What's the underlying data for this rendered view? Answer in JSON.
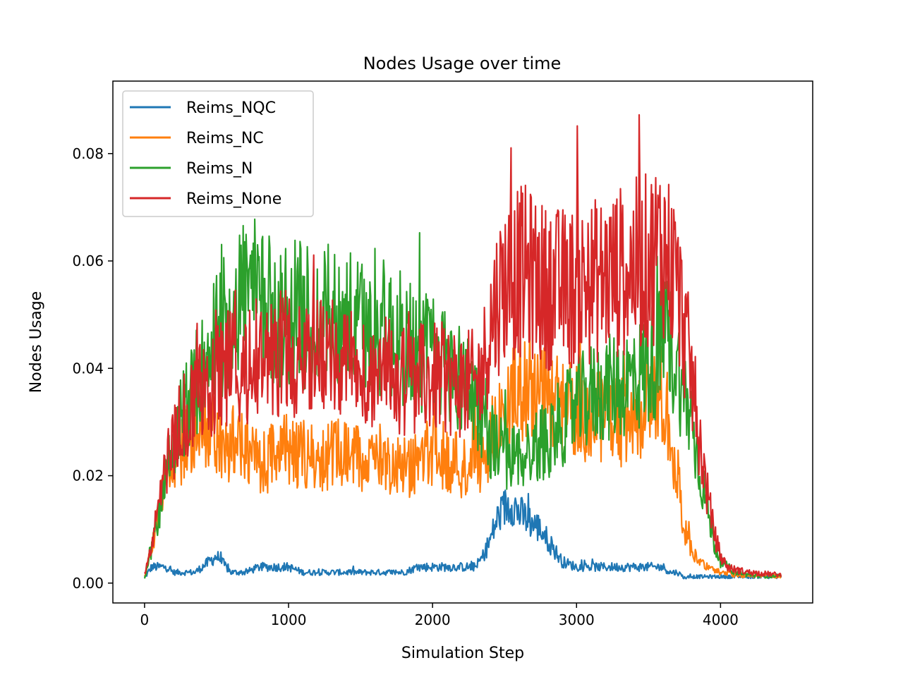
{
  "chart_data": {
    "type": "line",
    "title": "Nodes Usage over time",
    "xlabel": "Simulation Step",
    "ylabel": "Nodes Usage",
    "xlim": [
      -220,
      4640
    ],
    "ylim": [
      -0.0037,
      0.0935
    ],
    "xticks": [
      0,
      1000,
      2000,
      3000,
      4000
    ],
    "xtick_labels": [
      "0",
      "1000",
      "2000",
      "3000",
      "4000"
    ],
    "yticks": [
      0.0,
      0.02,
      0.04,
      0.06,
      0.08
    ],
    "ytick_labels": [
      "0.00",
      "0.02",
      "0.04",
      "0.06",
      "0.08"
    ],
    "grid": false,
    "legend_position": "top-left",
    "x": [
      0,
      50,
      100,
      150,
      200,
      250,
      300,
      350,
      400,
      500,
      600,
      700,
      800,
      900,
      1000,
      1100,
      1200,
      1300,
      1400,
      1500,
      1600,
      1700,
      1800,
      1900,
      2000,
      2100,
      2200,
      2300,
      2350,
      2400,
      2450,
      2500,
      2550,
      2600,
      2650,
      2700,
      2750,
      2800,
      2900,
      3000,
      3100,
      3200,
      3300,
      3400,
      3500,
      3550,
      3600,
      3650,
      3700,
      3750,
      3800,
      3850,
      3900,
      3950,
      4000,
      4050,
      4100,
      4200,
      4300,
      4420
    ],
    "series": [
      {
        "name": "Reims_NQC",
        "color": "#1f77b4",
        "values": [
          0.001,
          0.003,
          0.003,
          0.003,
          0.002,
          0.002,
          0.002,
          0.002,
          0.003,
          0.005,
          0.002,
          0.002,
          0.003,
          0.003,
          0.003,
          0.002,
          0.002,
          0.002,
          0.002,
          0.002,
          0.002,
          0.002,
          0.002,
          0.003,
          0.003,
          0.003,
          0.003,
          0.003,
          0.005,
          0.008,
          0.012,
          0.014,
          0.015,
          0.013,
          0.012,
          0.011,
          0.01,
          0.008,
          0.004,
          0.003,
          0.003,
          0.003,
          0.003,
          0.003,
          0.003,
          0.003,
          0.003,
          0.002,
          0.002,
          0.001,
          0.0012,
          0.0012,
          0.0012,
          0.0012,
          0.0012,
          0.0012,
          0.0012,
          0.0012,
          0.0012,
          0.0012
        ]
      },
      {
        "name": "Reims_NC",
        "color": "#ff7f0e",
        "values": [
          0.001,
          0.007,
          0.014,
          0.019,
          0.022,
          0.025,
          0.028,
          0.029,
          0.03,
          0.027,
          0.025,
          0.024,
          0.022,
          0.024,
          0.025,
          0.024,
          0.023,
          0.024,
          0.024,
          0.023,
          0.024,
          0.023,
          0.022,
          0.022,
          0.025,
          0.023,
          0.022,
          0.023,
          0.023,
          0.026,
          0.028,
          0.032,
          0.034,
          0.036,
          0.037,
          0.036,
          0.035,
          0.034,
          0.033,
          0.032,
          0.031,
          0.031,
          0.03,
          0.031,
          0.033,
          0.034,
          0.035,
          0.03,
          0.018,
          0.01,
          0.006,
          0.004,
          0.003,
          0.0025,
          0.002,
          0.0018,
          0.0015,
          0.0014,
          0.0013,
          0.0013
        ]
      },
      {
        "name": "Reims_N",
        "color": "#2ca02c",
        "values": [
          0.001,
          0.006,
          0.013,
          0.02,
          0.025,
          0.03,
          0.033,
          0.036,
          0.04,
          0.045,
          0.05,
          0.055,
          0.052,
          0.05,
          0.05,
          0.05,
          0.048,
          0.05,
          0.049,
          0.047,
          0.048,
          0.047,
          0.045,
          0.044,
          0.042,
          0.041,
          0.038,
          0.035,
          0.03,
          0.027,
          0.025,
          0.024,
          0.023,
          0.024,
          0.024,
          0.025,
          0.026,
          0.027,
          0.03,
          0.033,
          0.035,
          0.036,
          0.037,
          0.038,
          0.04,
          0.042,
          0.045,
          0.044,
          0.04,
          0.035,
          0.03,
          0.022,
          0.015,
          0.008,
          0.004,
          0.003,
          0.002,
          0.0015,
          0.0013,
          0.0013
        ]
      },
      {
        "name": "Reims_None",
        "color": "#d62728",
        "values": [
          0.002,
          0.007,
          0.014,
          0.022,
          0.026,
          0.03,
          0.032,
          0.034,
          0.036,
          0.038,
          0.04,
          0.041,
          0.042,
          0.043,
          0.043,
          0.042,
          0.043,
          0.042,
          0.041,
          0.04,
          0.04,
          0.039,
          0.038,
          0.038,
          0.038,
          0.038,
          0.037,
          0.037,
          0.04,
          0.048,
          0.053,
          0.056,
          0.057,
          0.058,
          0.058,
          0.057,
          0.056,
          0.055,
          0.055,
          0.055,
          0.056,
          0.057,
          0.058,
          0.059,
          0.06,
          0.062,
          0.063,
          0.06,
          0.055,
          0.047,
          0.038,
          0.028,
          0.018,
          0.01,
          0.005,
          0.003,
          0.0025,
          0.002,
          0.0018,
          0.0015
        ]
      }
    ]
  }
}
